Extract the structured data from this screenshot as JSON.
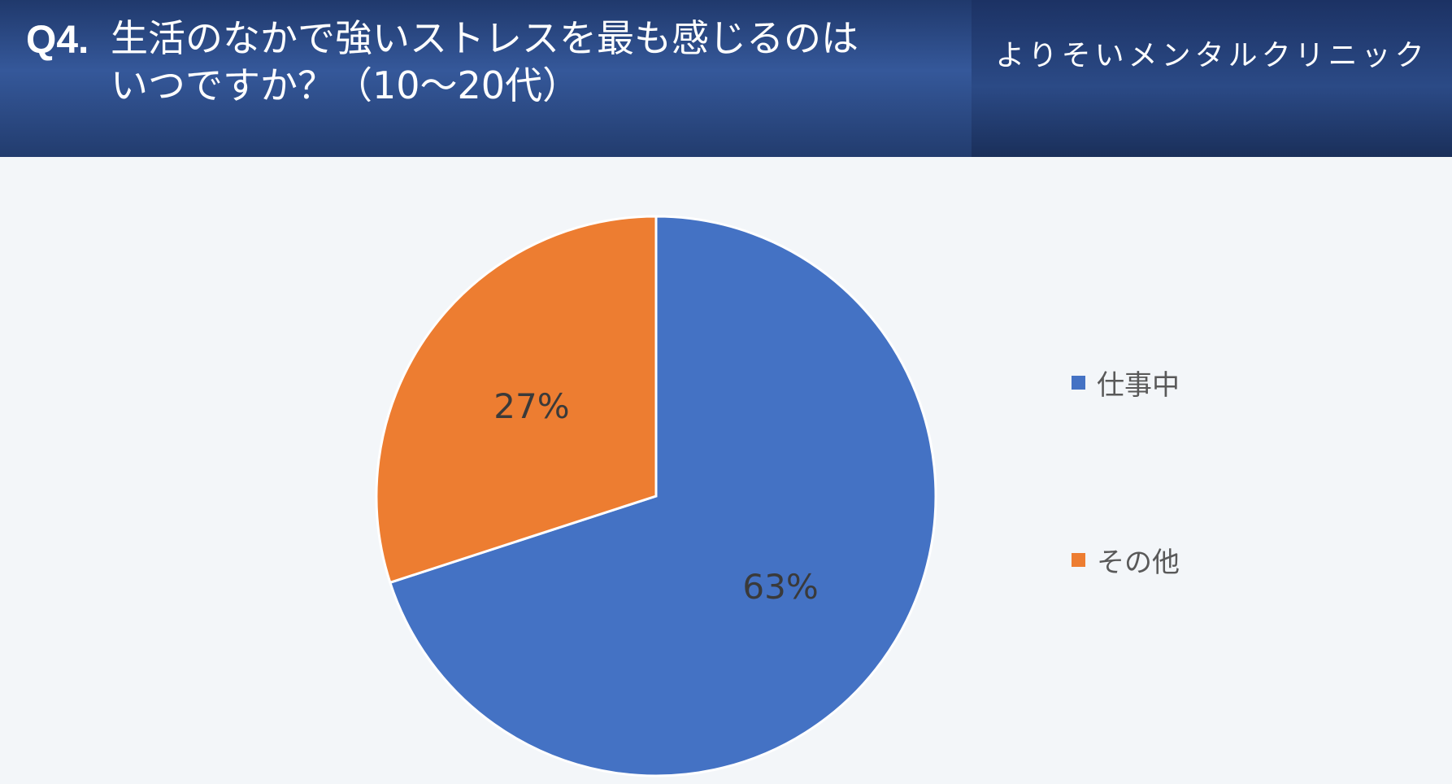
{
  "header": {
    "question_number": "Q4.",
    "question_line1": "生活のなかで強いストレスを最も感じるのは",
    "question_line2": "いつですか？（10〜20代）",
    "brand": "よりそいメンタルクリニック"
  },
  "colors": {
    "slice_work": "#4472c4",
    "slice_other": "#ed7d31"
  },
  "chart_data": {
    "type": "pie",
    "categories": [
      "仕事中",
      "その他"
    ],
    "values": [
      63,
      27
    ],
    "labels": [
      "63%",
      "27%"
    ],
    "legend_position": "right"
  }
}
